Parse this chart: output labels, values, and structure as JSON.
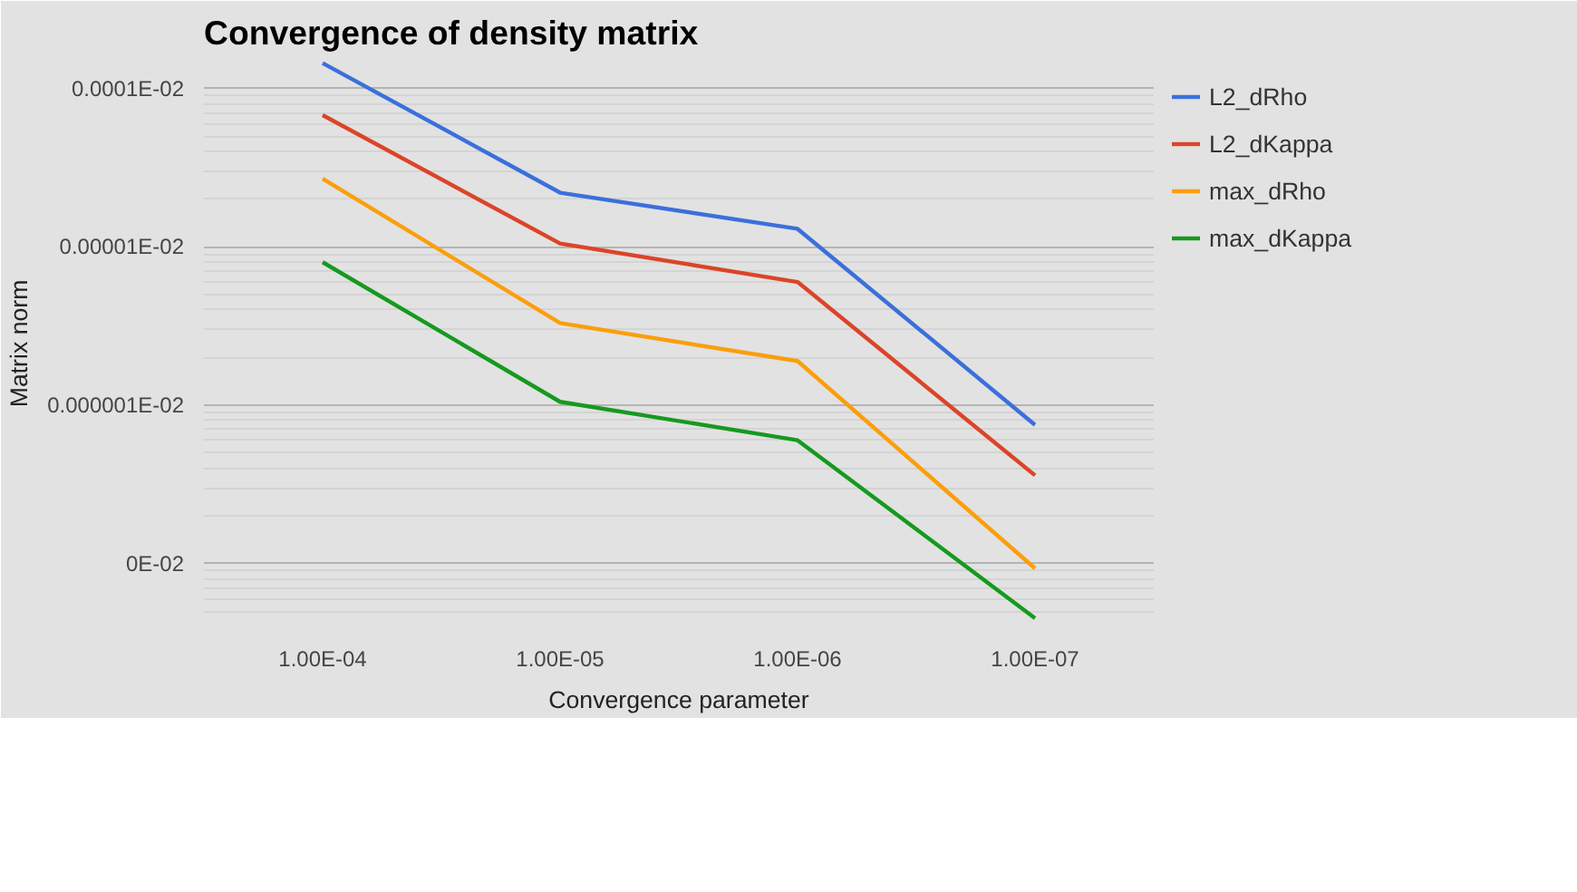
{
  "chart_data": {
    "type": "line",
    "title": "Convergence of density matrix",
    "xlabel": "Convergence parameter",
    "ylabel": "Matrix norm",
    "categories": [
      "1.00E-04",
      "1.00E-05",
      "1.00E-06",
      "1.00E-07"
    ],
    "series": [
      {
        "name": "L2_dRho",
        "color": "#3b6fdb",
        "values": [
          1.45e-06,
          2.2e-07,
          1.3e-07,
          7.5e-09
        ]
      },
      {
        "name": "L2_dKappa",
        "color": "#db4428",
        "values": [
          6.8e-07,
          1.05e-07,
          6e-08,
          3.6e-09
        ]
      },
      {
        "name": "max_dRho",
        "color": "#fb9e0c",
        "values": [
          2.7e-07,
          3.3e-08,
          1.9e-08,
          9.3e-10
        ]
      },
      {
        "name": "max_dKappa",
        "color": "#16991f",
        "values": [
          8e-08,
          1.05e-08,
          6e-09,
          4.5e-10
        ]
      }
    ],
    "log": "y",
    "ylim": [
      4e-10,
      1.5e-06
    ],
    "yticks": [
      {
        "value": 1e-06,
        "label": "0.0001E-02"
      },
      {
        "value": 1e-07,
        "label": "0.00001E-02"
      },
      {
        "value": 1e-08,
        "label": "0.000001E-02"
      },
      {
        "value": 1e-09,
        "label": "0E-02"
      }
    ],
    "grid": "y",
    "legend": "right",
    "marker": "none",
    "line_style": "solid"
  }
}
